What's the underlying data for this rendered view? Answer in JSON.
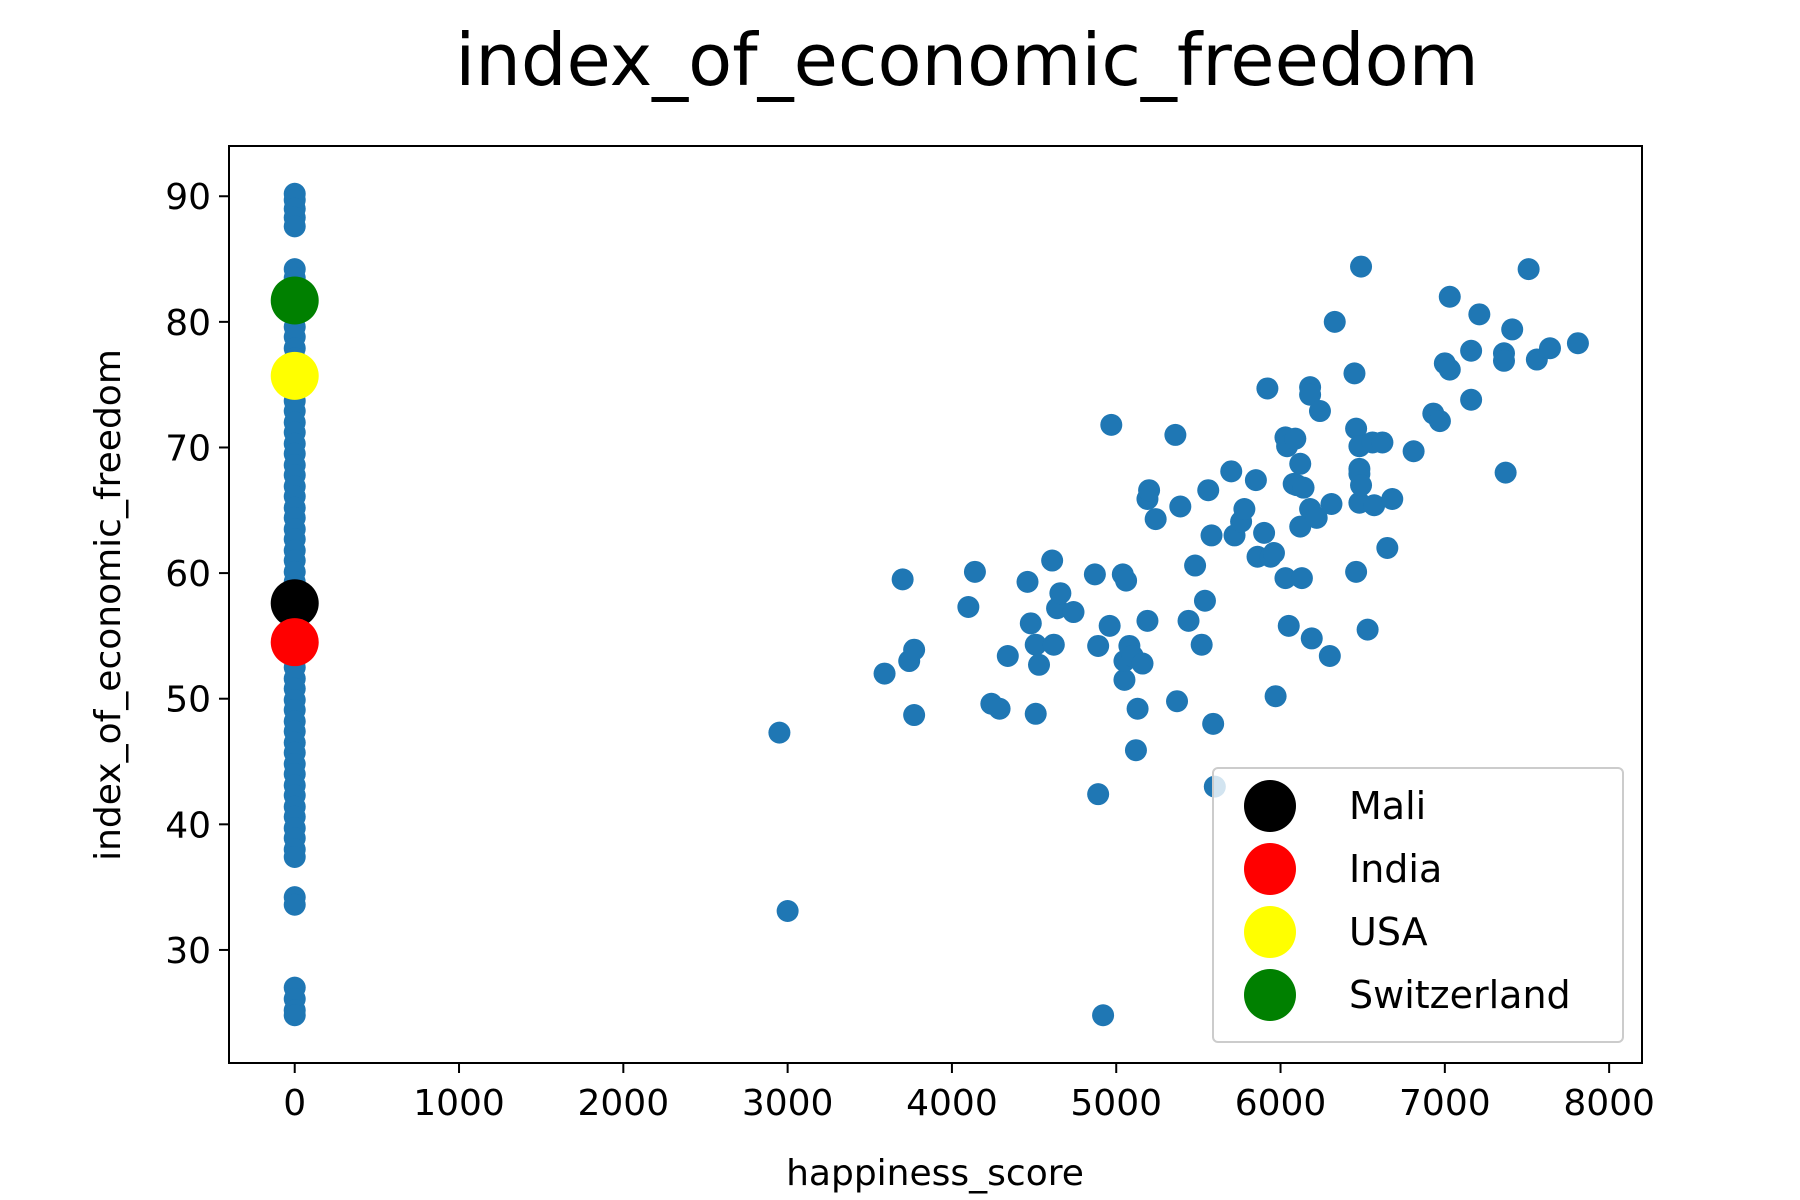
{
  "chart_data": {
    "type": "scatter",
    "title": "index_of_economic_freedom",
    "xlabel": "happiness_score",
    "ylabel": "index_of_economic_freedom",
    "xlim": [
      -400,
      8200
    ],
    "ylim": [
      21,
      94
    ],
    "xticks": [
      0,
      1000,
      2000,
      3000,
      4000,
      5000,
      6000,
      7000,
      8000
    ],
    "xtick_labels": [
      "0",
      "1000",
      "2000",
      "3000",
      "4000",
      "5000",
      "6000",
      "7000",
      "8000"
    ],
    "yticks": [
      30,
      40,
      50,
      60,
      70,
      80,
      90
    ],
    "ytick_labels": [
      "30",
      "40",
      "50",
      "60",
      "70",
      "80",
      "90"
    ],
    "grid": false,
    "legend_position": "lower-right",
    "series": [
      {
        "color": "#1f77b4",
        "marker_size": "small",
        "points": [
          [
            0,
            90.2
          ],
          [
            0,
            89.7
          ],
          [
            0,
            89.0
          ],
          [
            0,
            88.3
          ],
          [
            0,
            87.6
          ],
          [
            0,
            84.2
          ],
          [
            0,
            83.5
          ],
          [
            0,
            82.8
          ],
          [
            0,
            81.9
          ],
          [
            0,
            80.9
          ],
          [
            0,
            79.6
          ],
          [
            0,
            78.8
          ],
          [
            0,
            77.9
          ],
          [
            0,
            77.1
          ],
          [
            0,
            76.3
          ],
          [
            0,
            75.4
          ],
          [
            0,
            74.6
          ],
          [
            0,
            73.7
          ],
          [
            0,
            72.9
          ],
          [
            0,
            72.0
          ],
          [
            0,
            71.2
          ],
          [
            0,
            70.3
          ],
          [
            0,
            69.5
          ],
          [
            0,
            68.6
          ],
          [
            0,
            67.8
          ],
          [
            0,
            66.9
          ],
          [
            0,
            66.1
          ],
          [
            0,
            65.2
          ],
          [
            0,
            64.4
          ],
          [
            0,
            63.5
          ],
          [
            0,
            62.7
          ],
          [
            0,
            61.8
          ],
          [
            0,
            61.0
          ],
          [
            0,
            60.1
          ],
          [
            0,
            59.3
          ],
          [
            0,
            58.4
          ],
          [
            0,
            57.6
          ],
          [
            0,
            56.7
          ],
          [
            0,
            55.9
          ],
          [
            0,
            55.0
          ],
          [
            0,
            54.2
          ],
          [
            0,
            53.3
          ],
          [
            0,
            52.5
          ],
          [
            0,
            51.6
          ],
          [
            0,
            50.8
          ],
          [
            0,
            49.9
          ],
          [
            0,
            49.1
          ],
          [
            0,
            48.2
          ],
          [
            0,
            47.4
          ],
          [
            0,
            46.5
          ],
          [
            0,
            45.7
          ],
          [
            0,
            44.8
          ],
          [
            0,
            44.0
          ],
          [
            0,
            43.1
          ],
          [
            0,
            42.3
          ],
          [
            0,
            41.4
          ],
          [
            0,
            40.6
          ],
          [
            0,
            39.7
          ],
          [
            0,
            38.9
          ],
          [
            0,
            38.0
          ],
          [
            0,
            37.4
          ],
          [
            0,
            34.2
          ],
          [
            0,
            33.6
          ],
          [
            0,
            27.0
          ],
          [
            0,
            26.1
          ],
          [
            0,
            25.2
          ],
          [
            0,
            24.8
          ],
          [
            2950,
            47.3
          ],
          [
            3000,
            33.1
          ],
          [
            3590,
            52.0
          ],
          [
            3700,
            59.5
          ],
          [
            3740,
            53.0
          ],
          [
            3770,
            53.9
          ],
          [
            3770,
            48.7
          ],
          [
            4100,
            57.3
          ],
          [
            4140,
            60.1
          ],
          [
            4240,
            49.6
          ],
          [
            4290,
            49.2
          ],
          [
            4340,
            53.4
          ],
          [
            4460,
            59.3
          ],
          [
            4480,
            56.0
          ],
          [
            4510,
            54.3
          ],
          [
            4510,
            48.8
          ],
          [
            4530,
            52.7
          ],
          [
            4610,
            61.0
          ],
          [
            4620,
            54.3
          ],
          [
            4640,
            57.2
          ],
          [
            4660,
            58.4
          ],
          [
            4740,
            56.9
          ],
          [
            4870,
            59.9
          ],
          [
            4890,
            54.2
          ],
          [
            4890,
            42.4
          ],
          [
            4920,
            24.8
          ],
          [
            4960,
            55.8
          ],
          [
            4970,
            71.8
          ],
          [
            5040,
            59.9
          ],
          [
            5050,
            51.5
          ],
          [
            5050,
            53.0
          ],
          [
            5060,
            59.4
          ],
          [
            5080,
            54.2
          ],
          [
            5100,
            53.4
          ],
          [
            5120,
            45.9
          ],
          [
            5130,
            49.2
          ],
          [
            5160,
            52.8
          ],
          [
            5190,
            56.2
          ],
          [
            5190,
            65.9
          ],
          [
            5200,
            66.6
          ],
          [
            5240,
            64.3
          ],
          [
            5360,
            71.0
          ],
          [
            5370,
            49.8
          ],
          [
            5390,
            65.3
          ],
          [
            5440,
            56.2
          ],
          [
            5480,
            60.6
          ],
          [
            5520,
            54.3
          ],
          [
            5540,
            57.8
          ],
          [
            5560,
            66.6
          ],
          [
            5580,
            63.0
          ],
          [
            5590,
            48.0
          ],
          [
            5600,
            43.0
          ],
          [
            5700,
            68.1
          ],
          [
            5720,
            63.0
          ],
          [
            5760,
            64.1
          ],
          [
            5780,
            65.1
          ],
          [
            5850,
            67.4
          ],
          [
            5860,
            61.3
          ],
          [
            5900,
            63.2
          ],
          [
            5920,
            74.7
          ],
          [
            5940,
            61.3
          ],
          [
            5960,
            61.6
          ],
          [
            5970,
            50.2
          ],
          [
            6030,
            59.6
          ],
          [
            6030,
            70.8
          ],
          [
            6040,
            70.1
          ],
          [
            6050,
            55.8
          ],
          [
            6080,
            67.1
          ],
          [
            6090,
            70.7
          ],
          [
            6100,
            67.0
          ],
          [
            6120,
            63.7
          ],
          [
            6120,
            68.7
          ],
          [
            6130,
            59.6
          ],
          [
            6140,
            66.8
          ],
          [
            6180,
            74.8
          ],
          [
            6180,
            74.2
          ],
          [
            6180,
            65.1
          ],
          [
            6190,
            54.8
          ],
          [
            6220,
            64.4
          ],
          [
            6240,
            72.9
          ],
          [
            6300,
            53.4
          ],
          [
            6310,
            65.5
          ],
          [
            6330,
            80.0
          ],
          [
            6450,
            75.9
          ],
          [
            6460,
            71.5
          ],
          [
            6460,
            60.1
          ],
          [
            6480,
            65.6
          ],
          [
            6480,
            68.3
          ],
          [
            6480,
            67.9
          ],
          [
            6480,
            70.1
          ],
          [
            6490,
            84.4
          ],
          [
            6490,
            67.0
          ],
          [
            6530,
            55.5
          ],
          [
            6560,
            70.4
          ],
          [
            6570,
            65.4
          ],
          [
            6620,
            70.4
          ],
          [
            6650,
            62.0
          ],
          [
            6680,
            65.9
          ],
          [
            6810,
            69.7
          ],
          [
            6930,
            72.7
          ],
          [
            6970,
            72.1
          ],
          [
            7000,
            76.7
          ],
          [
            7030,
            82.0
          ],
          [
            7030,
            76.2
          ],
          [
            7160,
            77.7
          ],
          [
            7160,
            73.8
          ],
          [
            7210,
            80.6
          ],
          [
            7360,
            77.5
          ],
          [
            7360,
            76.9
          ],
          [
            7370,
            68.0
          ],
          [
            7410,
            79.4
          ],
          [
            7510,
            84.2
          ],
          [
            7560,
            77.0
          ],
          [
            7640,
            77.9
          ],
          [
            7810,
            78.3
          ]
        ]
      },
      {
        "name": "Mali",
        "color": "#000000",
        "marker_size": "large",
        "points": [
          [
            0,
            57.6
          ]
        ]
      },
      {
        "name": "India",
        "color": "#ff0000",
        "marker_size": "large",
        "points": [
          [
            0,
            54.5
          ]
        ]
      },
      {
        "name": "USA",
        "color": "#ffff00",
        "marker_size": "large",
        "points": [
          [
            0,
            75.7
          ]
        ]
      },
      {
        "name": "Switzerland",
        "color": "#008000",
        "marker_size": "large",
        "points": [
          [
            0,
            81.7
          ]
        ]
      }
    ],
    "legend": [
      "Mali",
      "India",
      "USA",
      "Switzerland"
    ]
  }
}
